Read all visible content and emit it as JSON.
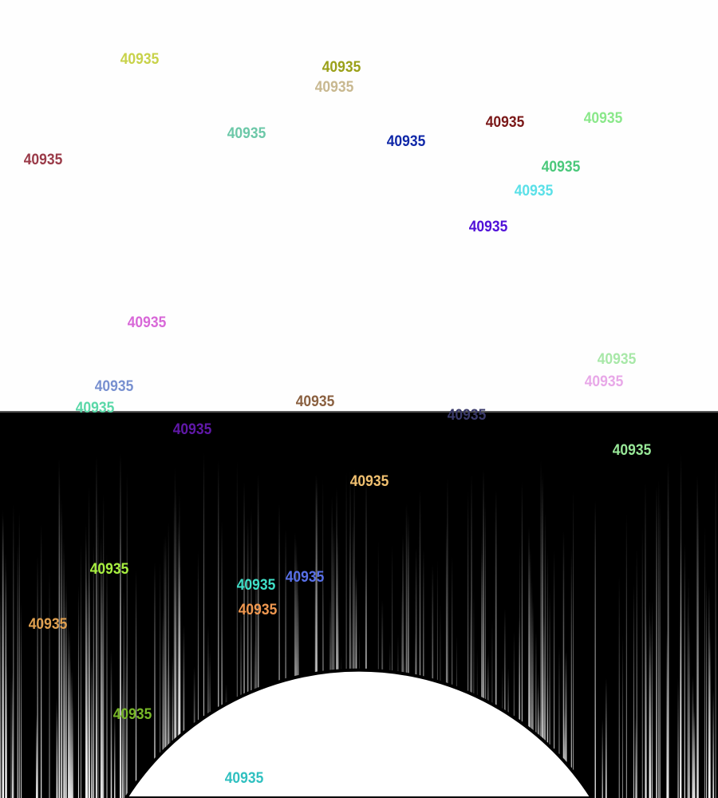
{
  "comments": [
    {
      "text": "40935",
      "color": "#c8d24a"
    },
    {
      "text": "40935",
      "color": "#c8b890"
    },
    {
      "text": "40935",
      "color": "#9aa018"
    },
    {
      "text": "40935",
      "color": "#6cc8a8"
    },
    {
      "text": "40935",
      "color": "#9a3a48"
    },
    {
      "text": "40935",
      "color": "#1028a8"
    },
    {
      "text": "40935",
      "color": "#7a1818"
    },
    {
      "text": "40935",
      "color": "#8ae88a"
    },
    {
      "text": "40935",
      "color": "#4ac87a"
    },
    {
      "text": "40935",
      "color": "#5ae0e8"
    },
    {
      "text": "40935",
      "color": "#5010d8"
    },
    {
      "text": "40935",
      "color": "#d868d8"
    },
    {
      "text": "40935",
      "color": "#a8e8a8"
    },
    {
      "text": "40935",
      "color": "#e8a8e8"
    },
    {
      "text": "40935",
      "color": "#7890d0"
    },
    {
      "text": "40935",
      "color": "#5ad8a8"
    },
    {
      "text": "40935",
      "color": "#8a6040"
    },
    {
      "text": "40935",
      "color": "#3a3a6a"
    },
    {
      "text": "40935",
      "color": "#6018a8"
    },
    {
      "text": "40935",
      "color": "#98e898"
    },
    {
      "text": "40935",
      "color": "#f0c070"
    },
    {
      "text": "40935",
      "color": "#a8f040"
    },
    {
      "text": "40935",
      "color": "#40e0c8"
    },
    {
      "text": "40935",
      "color": "#5870e8"
    },
    {
      "text": "40935",
      "color": "#f09850"
    },
    {
      "text": "40935",
      "color": "#e0a050"
    },
    {
      "text": "40935",
      "color": "#78b828"
    },
    {
      "text": "40935",
      "color": "#30c0c0"
    }
  ]
}
